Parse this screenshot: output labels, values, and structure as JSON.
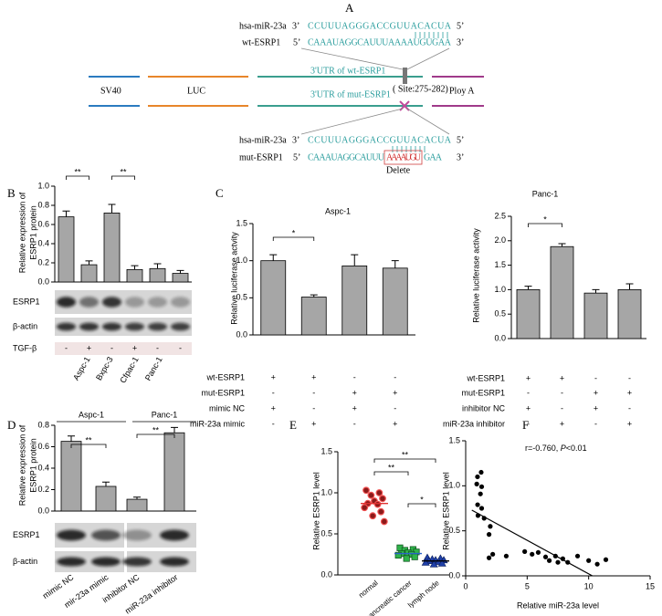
{
  "panel_labels": {
    "a": "A",
    "b": "B",
    "c": "C",
    "d": "D",
    "e": "E",
    "f": "F"
  },
  "diagram": {
    "wt_pair": {
      "mirna_name": "hsa-miR-23a",
      "mirna_end_3": "3’",
      "mirna_seq": "CCUUUAGGGACCGUUACACUA",
      "mirna_end_5": "5’",
      "target_name": "wt-ESRP1",
      "target_end_5": "5’",
      "target_seq": "CAAAUAGGCAUUUAAAAUGUGAA",
      "target_end_3": "3’"
    },
    "construct": {
      "sv40": "SV40",
      "luc": "LUC",
      "polya": "Ploy A",
      "wt_utr": "3'UTR of wt-ESRP1",
      "site": "( Site:275-282)",
      "mut_utr": "3'UTR of mut-ESRP1"
    },
    "mut_pair": {
      "mirna_name": "hsa-miR-23a",
      "mirna_end_3": "3’",
      "mirna_seq": "CCUUUAGGGACCGUUACACUA",
      "mirna_end_5": "5’",
      "target_name": "mut-ESRP1",
      "target_end_5": "5’",
      "target_seq_start": "CAAAUAGGCAUUU",
      "target_seq_mutated": "AAAAUGU",
      "target_seq_end": "GAA",
      "target_end_3": "3’",
      "note": "Delete"
    }
  },
  "chart_data": [
    {
      "type": "bar",
      "ylabel": [
        "Relative expression of",
        "ESRP1 protein"
      ],
      "color": "#a6a6a6",
      "values": [
        0.68,
        0.18,
        0.72,
        0.13,
        0.14,
        0.09
      ],
      "errors": [
        0.06,
        0.04,
        0.09,
        0.04,
        0.05,
        0.03
      ],
      "ylim": [
        0,
        1
      ],
      "yticks": [
        {
          "value": 0,
          "label": "0.0"
        },
        0.2,
        0.4,
        0.6,
        0.8,
        {
          "value": 1,
          "label": "1.0"
        }
      ],
      "significance": [
        "**",
        "**"
      ],
      "blot_rows": [
        "ESRP1",
        "β-actin"
      ],
      "treatment_rows": [
        {
          "label": "TGF-β",
          "signs": [
            "-",
            "+",
            "-",
            "+",
            "-",
            "-"
          ]
        }
      ],
      "x_labels": [
        "Aspc-1",
        "Bxpc-3",
        "Cfpac-1",
        "Panc-1"
      ]
    },
    {
      "type": "bar",
      "title": "Aspc-1",
      "ylabel": [
        "Relative luciferase actvity"
      ],
      "color": "#a6a6a6",
      "values": [
        1.0,
        0.51,
        0.93,
        0.9
      ],
      "errors": [
        0.08,
        0.03,
        0.15,
        0.1
      ],
      "ylim": [
        0,
        1.5
      ],
      "yticks": [
        {
          "value": 0,
          "label": "0.0"
        },
        0.5,
        {
          "value": 1,
          "label": "1.0"
        },
        1.5
      ],
      "significance": [
        "*"
      ],
      "treatment_rows": [
        {
          "label": "wt-ESRP1",
          "signs": [
            "+",
            "+",
            "-",
            "-"
          ]
        },
        {
          "label": "mut-ESRP1",
          "signs": [
            "-",
            "-",
            "+",
            "+"
          ]
        },
        {
          "label": "mimic NC",
          "signs": [
            "+",
            "-",
            "+",
            "-"
          ]
        },
        {
          "label": "miR-23a mimic",
          "signs": [
            "-",
            "+",
            "-",
            "+"
          ]
        }
      ]
    },
    {
      "type": "bar",
      "title": "Panc-1",
      "ylabel": [
        "Relative luciferase activity"
      ],
      "color": "#a6a6a6",
      "values": [
        1.0,
        1.88,
        0.93,
        1.0
      ],
      "errors": [
        0.07,
        0.06,
        0.07,
        0.12
      ],
      "ylim": [
        0,
        2.5
      ],
      "yticks": [
        {
          "value": 0,
          "label": "0.0"
        },
        0.5,
        {
          "value": 1,
          "label": "1.0"
        },
        1.5,
        {
          "value": 2,
          "label": "2.0"
        },
        2.5
      ],
      "significance": [
        "*"
      ],
      "treatment_rows": [
        {
          "label": "wt-ESRP1",
          "signs": [
            "+",
            "+",
            "-",
            "-"
          ]
        },
        {
          "label": "mut-ESRP1",
          "signs": [
            "-",
            "-",
            "+",
            "+"
          ]
        },
        {
          "label": "inhibitor NC",
          "signs": [
            "+",
            "-",
            "+",
            "-"
          ]
        },
        {
          "label": "miR-23a inhibitor",
          "signs": [
            "-",
            "+",
            "-",
            "+"
          ]
        }
      ]
    },
    {
      "type": "bar",
      "ylabel": [
        "Relative expression of",
        "ESRP1 protein"
      ],
      "color": "#a6a6a6",
      "values": [
        0.65,
        0.23,
        0.11,
        0.73
      ],
      "errors": [
        0.05,
        0.04,
        0.02,
        0.05
      ],
      "ylim": [
        0,
        0.8
      ],
      "yticks": [
        {
          "value": 0,
          "label": "0.0"
        },
        0.2,
        0.4,
        0.6,
        0.8
      ],
      "significance": [
        "**",
        "**"
      ],
      "groups": [
        "Aspc-1",
        "Panc-1"
      ],
      "blot_rows": [
        "ESRP1",
        "β-actin"
      ],
      "x_labels": [
        "mimic NC",
        "mir-23a mimic",
        "inhibitor NC",
        "miR-23a inhibitor"
      ]
    },
    {
      "type": "strip",
      "ylabel": [
        "Relative ESRP1 level"
      ],
      "categories": [
        "normal",
        "pancreatic cancer",
        "lymph node"
      ],
      "points": [
        [
          1.03,
          1.0,
          0.97,
          0.93,
          0.9,
          0.87,
          0.86,
          0.82,
          0.77,
          0.72,
          0.65
        ],
        [
          0.33,
          0.31,
          0.3,
          0.28,
          0.27,
          0.26,
          0.25,
          0.24,
          0.22,
          0.2
        ],
        [
          0.21,
          0.2,
          0.19,
          0.18,
          0.18,
          0.17,
          0.16,
          0.15,
          0.14,
          0.13
        ]
      ],
      "medians": [
        0.87,
        0.26,
        0.17
      ],
      "markers": [
        "circle",
        "square",
        "triangle"
      ],
      "colors": [
        "#8b1a1a",
        "#2fb34a",
        "#1f3fa8"
      ],
      "median_colors": [
        "#e03030",
        "#2a62c9",
        "#000000"
      ],
      "ylim": [
        0,
        1.5
      ],
      "yticks": [
        {
          "value": 0,
          "label": "0.0"
        },
        0.5,
        {
          "value": 1,
          "label": "1.0"
        },
        1.5
      ],
      "significance": [
        "**",
        "**",
        "*"
      ]
    },
    {
      "type": "scatter",
      "xlabel": "Relative miR-23a level",
      "ylabel": [
        "Relative ESRP1 level"
      ],
      "color": "#000000",
      "annotation": [
        "r=-0.760, ",
        "P",
        "<0.01"
      ],
      "x": [
        0.96,
        1.26,
        0.9,
        1.3,
        1.2,
        0.97,
        1.3,
        1.0,
        1.5,
        2.0,
        1.9,
        2.2,
        1.9,
        3.3,
        4.8,
        5.4,
        5.9,
        6.5,
        6.8,
        7.3,
        7.5,
        7.9,
        8.3,
        9.1,
        10.0,
        10.7,
        11.4
      ],
      "y": [
        1.1,
        1.15,
        1.02,
        0.99,
        0.91,
        0.79,
        0.75,
        0.67,
        0.64,
        0.55,
        0.46,
        0.24,
        0.2,
        0.22,
        0.27,
        0.24,
        0.26,
        0.21,
        0.17,
        0.22,
        0.15,
        0.19,
        0.15,
        0.22,
        0.17,
        0.13,
        0.18
      ],
      "fit": {
        "x": [
          0.5,
          10.3
        ],
        "y": [
          0.73,
          0
        ]
      },
      "xlim": [
        0,
        15
      ],
      "xticks": [
        0,
        5,
        10,
        15
      ],
      "ylim": [
        0,
        1.5
      ],
      "yticks": [
        {
          "value": 0,
          "label": "0.0"
        },
        0.5,
        {
          "value": 1,
          "label": "1.0"
        },
        1.5
      ]
    }
  ]
}
